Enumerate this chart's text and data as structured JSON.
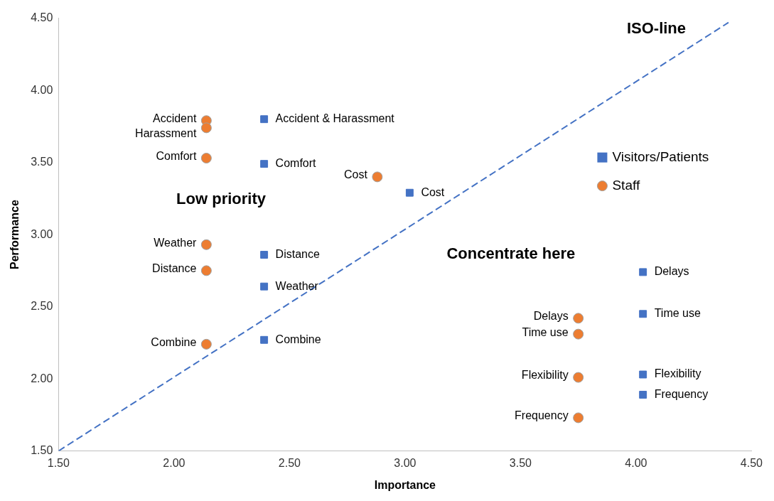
{
  "chart_data": {
    "type": "scatter",
    "xlabel": "Importance",
    "ylabel": "Performance",
    "xlim": [
      1.5,
      4.5
    ],
    "ylim": [
      1.5,
      4.5
    ],
    "xticks": [
      {
        "value": 1.5,
        "label": "1.50"
      },
      {
        "value": 2,
        "label": "2.00"
      },
      {
        "value": 2.5,
        "label": "2.50"
      },
      {
        "value": 3,
        "label": "3.00"
      },
      {
        "value": 3.5,
        "label": "3.50"
      },
      {
        "value": 4,
        "label": "4.00"
      },
      {
        "value": 4.5,
        "label": "4.50"
      }
    ],
    "yticks": [
      {
        "value": 1.5,
        "label": "1.50"
      },
      {
        "value": 2,
        "label": "2.00"
      },
      {
        "value": 2.5,
        "label": "2.50"
      },
      {
        "value": 3,
        "label": "3.00"
      },
      {
        "value": 3.5,
        "label": "3.50"
      },
      {
        "value": 4,
        "label": "4.00"
      },
      {
        "value": 4.5,
        "label": "4.50"
      }
    ],
    "grid": false,
    "legend": "right",
    "series": [
      {
        "name": "Visitors/Patients",
        "color": "#4472c4",
        "marker": "square",
        "x": [
          2.39,
          2.39,
          3.02,
          2.39,
          2.39,
          2.39,
          4.03,
          4.03,
          4.03,
          4.03
        ],
        "values": [
          3.8,
          3.49,
          3.29,
          2.86,
          2.64,
          2.27,
          2.74,
          2.45,
          2.03,
          1.89
        ],
        "value_labels": [
          "Accident & Harassment",
          "Comfort",
          "Cost",
          "Distance",
          "Weather",
          "Combine",
          "Delays",
          "Time use",
          "Flexibility",
          "Frequency"
        ]
      },
      {
        "name": "Staff",
        "color": "#ed7d31",
        "marker": "circle",
        "x": [
          2.14,
          2.14,
          2.14,
          2.88,
          2.14,
          2.14,
          2.14,
          3.75,
          3.75,
          3.75,
          3.75
        ],
        "values": [
          3.79,
          3.74,
          3.53,
          3.4,
          2.93,
          2.75,
          2.24,
          2.42,
          2.31,
          2.01,
          1.73
        ],
        "value_labels": [
          "Accident",
          "Harassment",
          "Comfort",
          "Cost",
          "Weather",
          "Distance",
          "Combine",
          "Delays",
          "Time use",
          "Flexibility",
          "Frequency"
        ]
      },
      {
        "type": "line",
        "color": "#4472c4",
        "line_style": "dashed",
        "marker": "none",
        "x": [
          1.5,
          4.4
        ],
        "values": [
          1.5,
          4.47
        ]
      }
    ],
    "annotations": [
      "ISO-line",
      "Low priority",
      "Concentrate here"
    ]
  }
}
